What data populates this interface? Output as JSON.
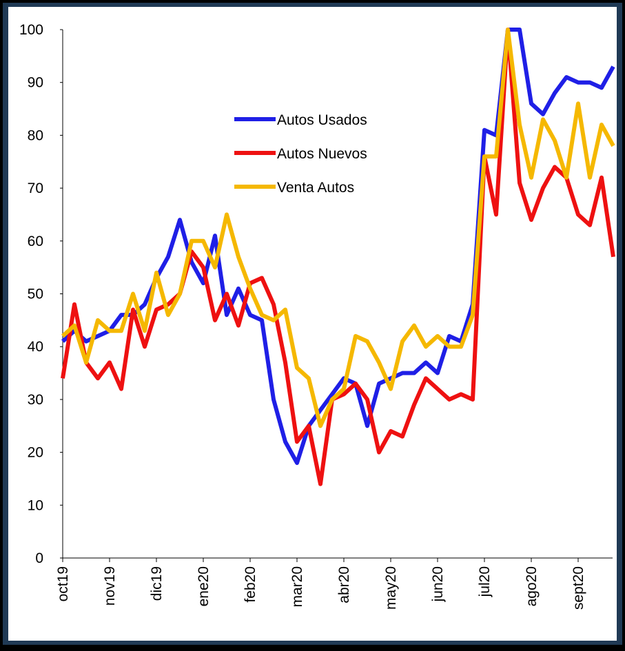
{
  "chart_data": {
    "type": "line",
    "categories": [
      "oct19",
      null,
      null,
      null,
      "nov19",
      null,
      null,
      null,
      "dic19",
      null,
      null,
      null,
      "ene20",
      null,
      null,
      null,
      "feb20",
      null,
      null,
      null,
      "mar20",
      null,
      null,
      null,
      "abr20",
      null,
      null,
      null,
      "may20",
      null,
      null,
      null,
      "jun20",
      null,
      null,
      null,
      "jul20",
      null,
      null,
      null,
      "ago20",
      null,
      null,
      null,
      "sept20",
      null,
      null,
      null
    ],
    "series": [
      {
        "name": "Autos Usados",
        "color": "#1f1fe6",
        "values": [
          41,
          43,
          41,
          42,
          43,
          46,
          46,
          48,
          53,
          57,
          64,
          56,
          52,
          61,
          46,
          51,
          46,
          45,
          30,
          22,
          18,
          25,
          28,
          31,
          34,
          33,
          25,
          33,
          34,
          35,
          35,
          37,
          35,
          42,
          41,
          48,
          81,
          80,
          100,
          100,
          86,
          84,
          88,
          91,
          90,
          90,
          89,
          93
        ]
      },
      {
        "name": "Autos Nuevos",
        "color": "#ee1111",
        "values": [
          34,
          48,
          37,
          34,
          37,
          32,
          47,
          40,
          47,
          48,
          50,
          58,
          55,
          45,
          50,
          44,
          52,
          53,
          48,
          37,
          22,
          25,
          14,
          30,
          31,
          33,
          30,
          20,
          24,
          23,
          29,
          34,
          32,
          30,
          31,
          30,
          76,
          65,
          100,
          71,
          64,
          70,
          74,
          72,
          65,
          63,
          72,
          57
        ]
      },
      {
        "name": "Venta Autos",
        "color": "#f5b800",
        "values": [
          42,
          44,
          37,
          45,
          43,
          43,
          50,
          43,
          54,
          46,
          50,
          60,
          60,
          55,
          65,
          57,
          51,
          46,
          45,
          47,
          36,
          34,
          25,
          30,
          32,
          42,
          41,
          37,
          32,
          41,
          44,
          40,
          42,
          40,
          40,
          46,
          76,
          76,
          100,
          82,
          72,
          83,
          79,
          72,
          86,
          72,
          82,
          78
        ]
      }
    ],
    "ylim": [
      0,
      100
    ],
    "yticks": [
      0,
      10,
      20,
      30,
      40,
      50,
      60,
      70,
      80,
      90,
      100
    ]
  }
}
